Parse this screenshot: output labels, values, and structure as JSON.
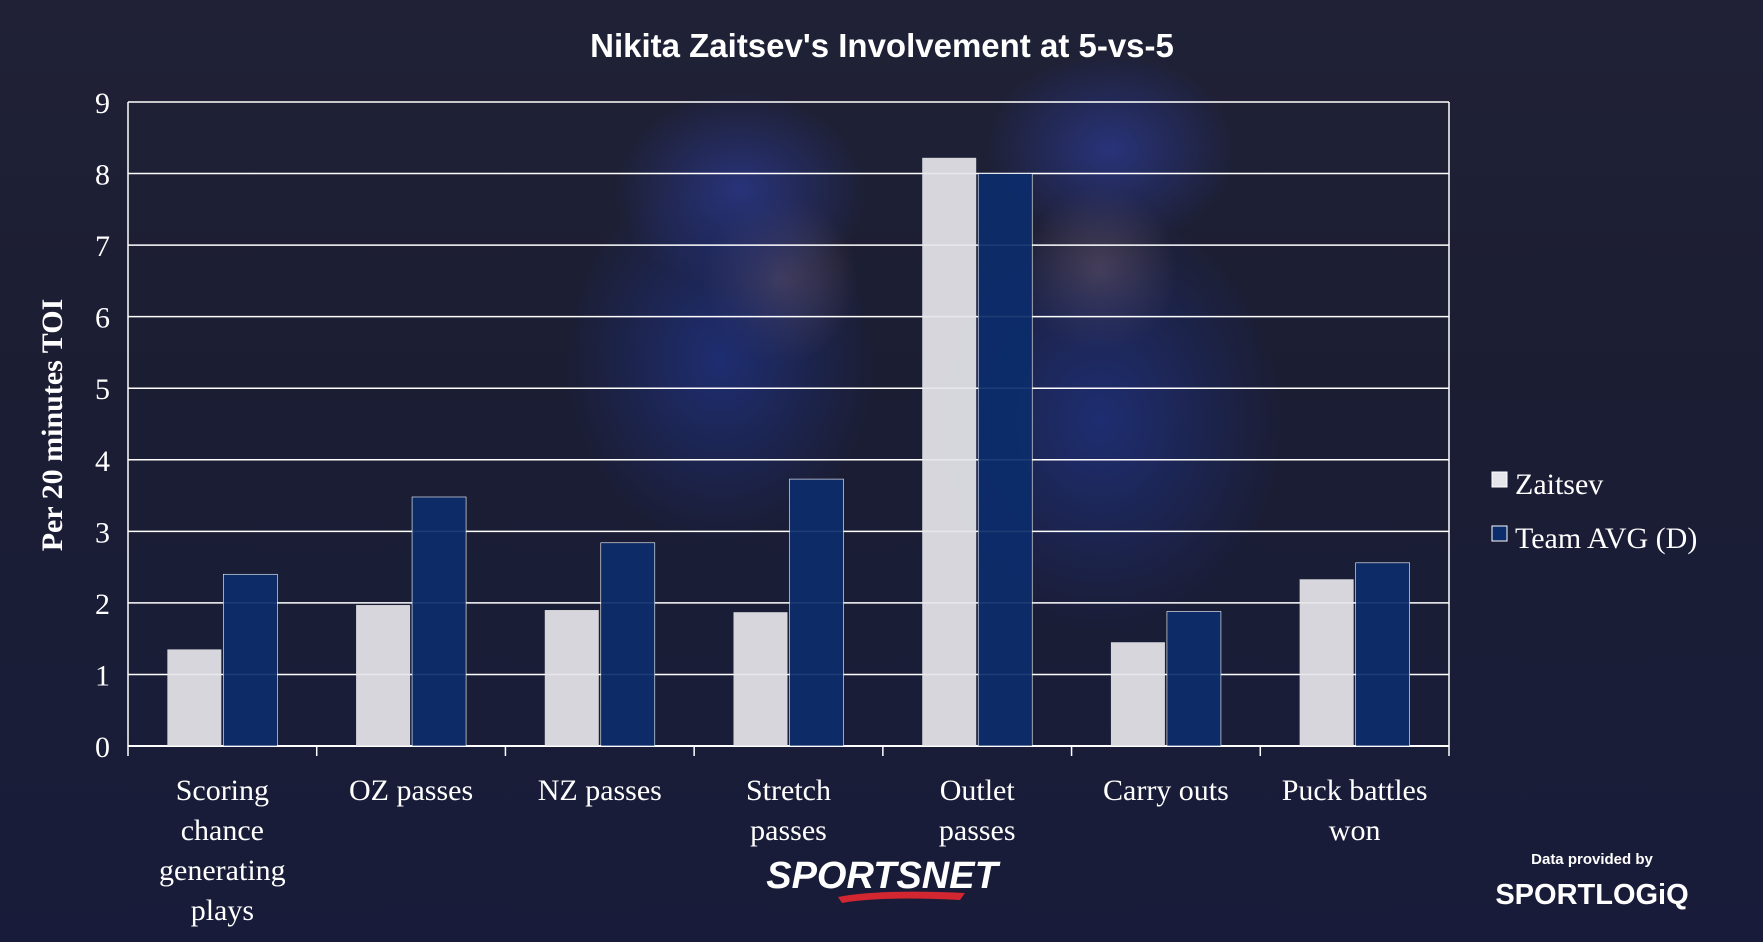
{
  "chart_data": {
    "type": "bar",
    "title": "Nikita Zaitsev's Involvement at 5-vs-5",
    "ylabel": "Per 20 minutes TOI",
    "xlabel": "",
    "ylim": [
      0,
      9
    ],
    "yticks": [
      0,
      1,
      2,
      3,
      4,
      5,
      6,
      7,
      8,
      9
    ],
    "grid": true,
    "legend_position": "right",
    "categories": [
      [
        "Scoring",
        "chance",
        "generating",
        "plays"
      ],
      [
        "OZ passes"
      ],
      [
        "NZ passes"
      ],
      [
        "Stretch",
        "passes"
      ],
      [
        "Outlet",
        "passes"
      ],
      [
        "Carry outs"
      ],
      [
        "Puck battles",
        "won"
      ]
    ],
    "series": [
      {
        "name": "Zaitsev",
        "color": "#e6e6ea",
        "values": [
          1.35,
          1.97,
          1.9,
          1.87,
          8.22,
          1.45,
          2.33
        ]
      },
      {
        "name": "Team AVG (D)",
        "color": "#0b2d6b",
        "values": [
          2.4,
          3.48,
          2.84,
          3.73,
          8.0,
          1.88,
          2.56
        ]
      }
    ]
  },
  "credits": {
    "broadcaster": "SPORTSNET",
    "data_note": "Data provided by",
    "data_brand": "SPORTLOGiQ"
  }
}
